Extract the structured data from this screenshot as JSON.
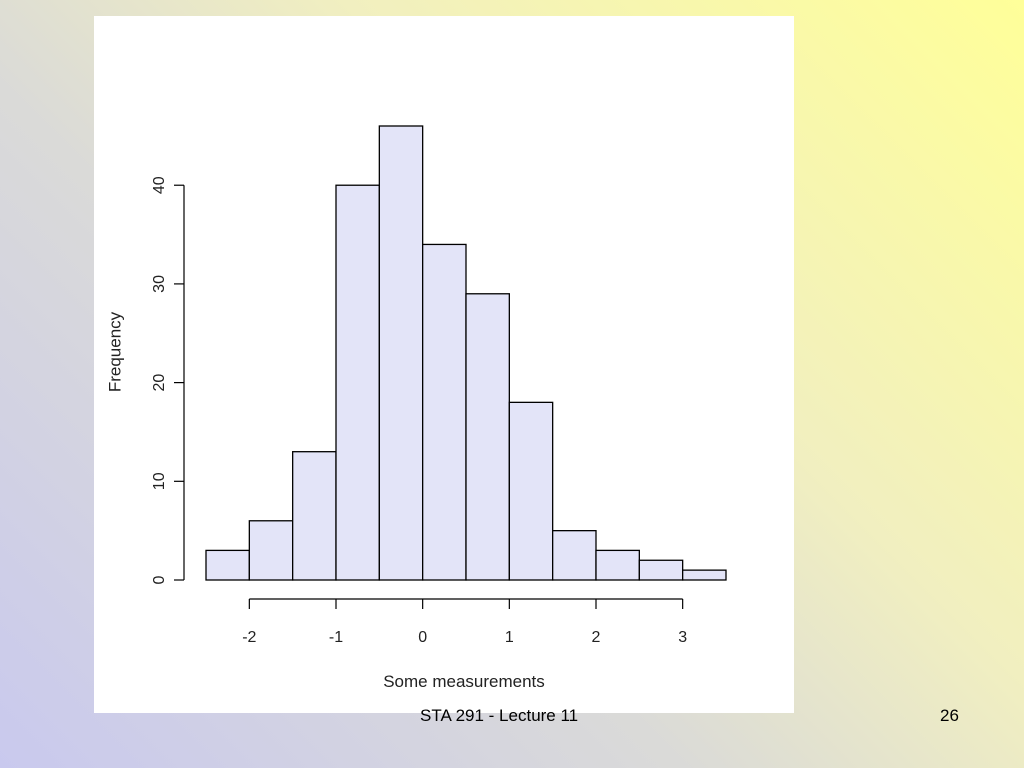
{
  "footer": {
    "center_text": "STA 291 - Lecture 11",
    "slide_number": "26"
  },
  "colors": {
    "bar_fill": "#e3e4f8",
    "bar_stroke": "#000000",
    "plot_background": "#ffffff"
  },
  "chart_data": {
    "type": "bar",
    "subtype": "histogram",
    "title": "",
    "xlabel": "Some measurements",
    "ylabel": "Frequency",
    "bin_edges": [
      -2.5,
      -2.0,
      -1.5,
      -1.0,
      -0.5,
      0.0,
      0.5,
      1.0,
      1.5,
      2.0,
      2.5,
      3.0,
      3.5
    ],
    "values": [
      3,
      6,
      13,
      40,
      46,
      34,
      29,
      18,
      5,
      3,
      2,
      1
    ],
    "x_ticks": [
      -2,
      -1,
      0,
      1,
      2,
      3
    ],
    "x_tick_labels": [
      "-2",
      "-1",
      "0",
      "1",
      "2",
      "3"
    ],
    "y_ticks": [
      0,
      10,
      20,
      30,
      40
    ],
    "y_tick_labels": [
      "0",
      "10",
      "20",
      "30",
      "40"
    ],
    "xlim": [
      -2.5,
      3.5
    ],
    "ylim": [
      0,
      46
    ],
    "grid": false,
    "legend": "none"
  }
}
